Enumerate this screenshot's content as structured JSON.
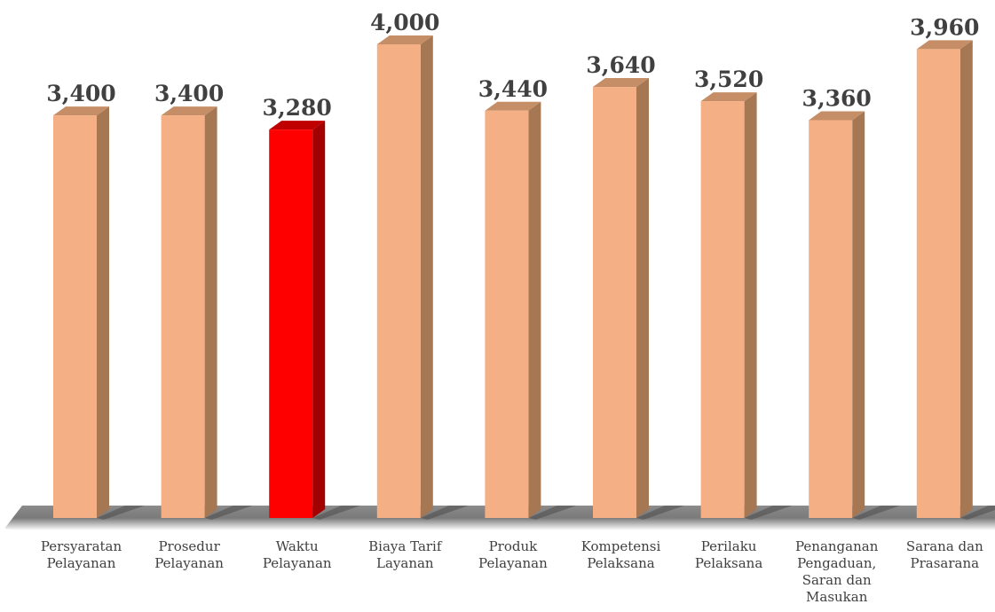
{
  "chart_data": {
    "type": "bar",
    "categories": [
      [
        "Persyaratan",
        "Pelayanan"
      ],
      [
        "Prosedur",
        "Pelayanan"
      ],
      [
        "Waktu",
        "Pelayanan"
      ],
      [
        "Biaya Tarif",
        "Layanan"
      ],
      [
        "Produk",
        "Pelayanan"
      ],
      [
        "Kompetensi",
        "Pelaksana"
      ],
      [
        "Perilaku",
        "Pelaksana"
      ],
      [
        "Penanganan",
        "Pengaduan,",
        "Saran dan",
        "Masukan"
      ],
      [
        "Sarana dan",
        "Prasarana"
      ]
    ],
    "values": [
      3.4,
      3.4,
      3.28,
      4.0,
      3.44,
      3.64,
      3.52,
      3.36,
      3.96
    ],
    "value_labels": [
      "3,400",
      "3,400",
      "3,280",
      "4,000",
      "3,440",
      "3,640",
      "3,520",
      "3,360",
      "3,960"
    ],
    "highlight_index": 2,
    "colors": {
      "bar_front": "#F4AF84",
      "bar_side": "#A57753",
      "bar_top": "#C58E66",
      "highlight_front": "#FF0000",
      "highlight_side": "#A30000",
      "highlight_top": "#C00000",
      "floor_shadow": "#595959",
      "label_text": "#404040"
    },
    "ylim": [
      0,
      4.0
    ],
    "grid": false,
    "legend": "none",
    "view": "3d"
  }
}
